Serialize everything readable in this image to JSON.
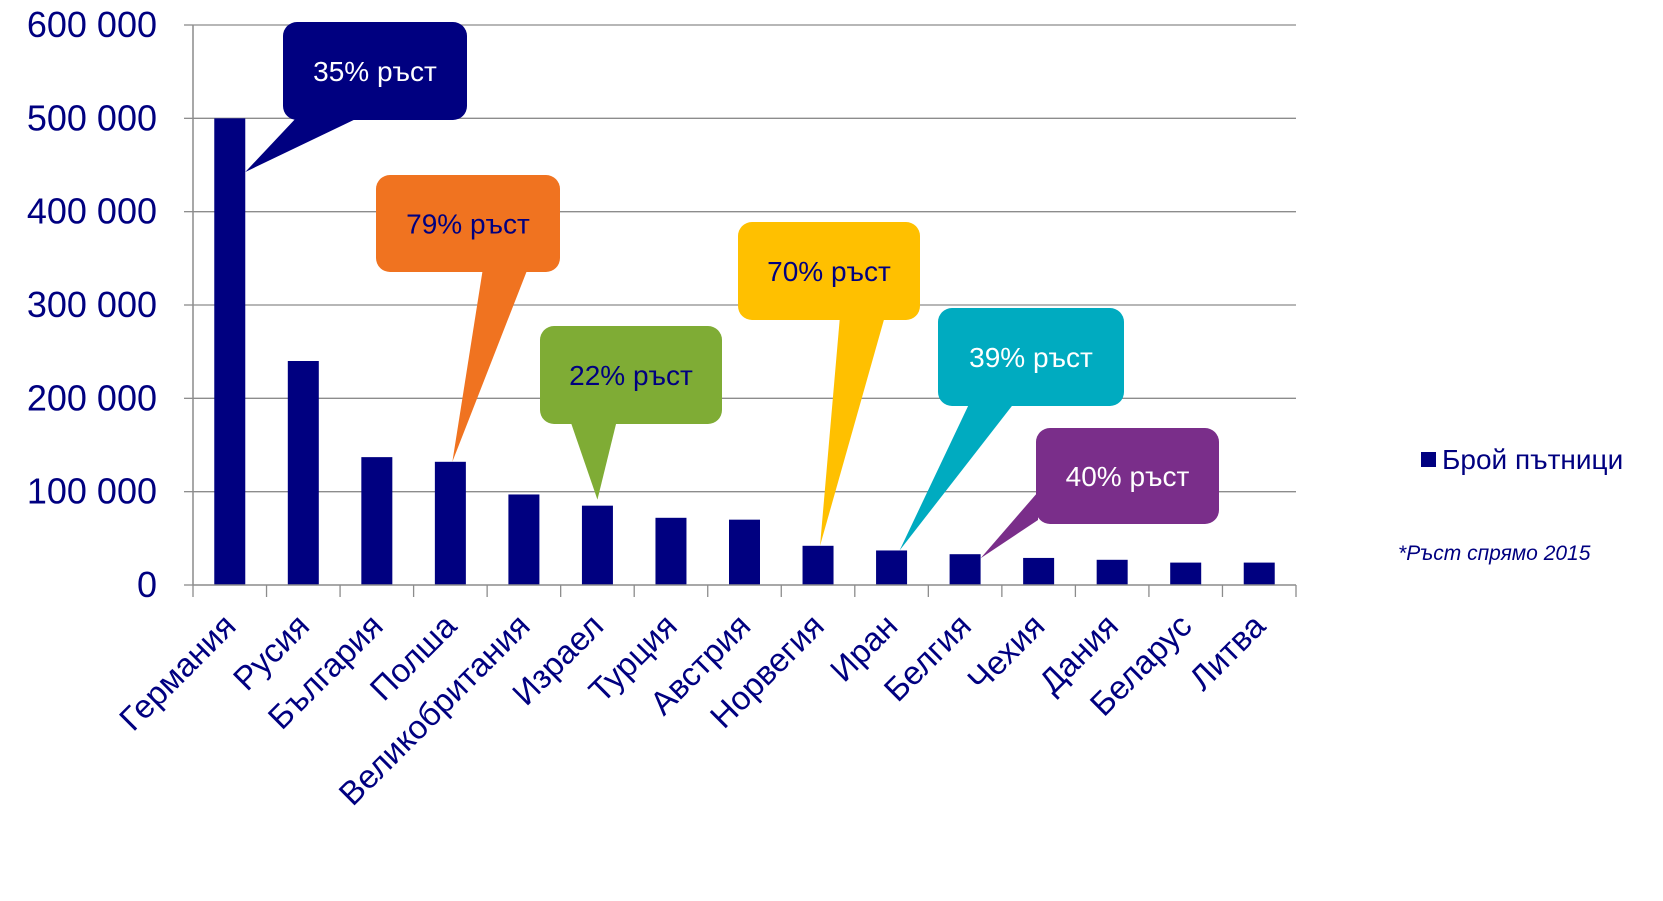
{
  "chart_data": {
    "type": "bar",
    "categories": [
      "Германия",
      "Русия",
      "България",
      "Полша",
      "Великобритания",
      "Израел",
      "Турция",
      "Австрия",
      "Норвегия",
      "Иран",
      "Белгия",
      "Чехия",
      "Дания",
      "Беларус",
      "Литва"
    ],
    "series": [
      {
        "name": "Брой пътници",
        "values": [
          500000,
          240000,
          137000,
          132000,
          97000,
          85000,
          72000,
          70000,
          42000,
          37000,
          33000,
          29000,
          27000,
          24000,
          24000
        ],
        "color": "#000080"
      }
    ],
    "yticks": [
      "0",
      "100 000",
      "200 000",
      "300 000",
      "400 000",
      "500 000",
      "600 000"
    ],
    "ylim": [
      0,
      600000
    ],
    "grid": true,
    "legend": "right",
    "note": {
      "star": "*",
      "text": "Ръст спрямо 2015"
    },
    "annotations": [
      {
        "text": "35% ръст",
        "category": "Германия",
        "color": "#000080",
        "text_color": "#ffffff"
      },
      {
        "text": "79% ръст",
        "category": "Полша",
        "color": "#f07320",
        "text_color": "#000080"
      },
      {
        "text": "22% ръст",
        "category": "Израел",
        "color": "#7fac35",
        "text_color": "#000080"
      },
      {
        "text": "70% ръст",
        "category": "Норвегия",
        "color": "#ffc000",
        "text_color": "#000080"
      },
      {
        "text": "39% ръст",
        "category": "Иран",
        "color": "#00abc0",
        "text_color": "#ffffff"
      },
      {
        "text": "40% ръст",
        "category": "Белгия",
        "color": "#7a2e8a",
        "text_color": "#ffffff"
      }
    ]
  }
}
